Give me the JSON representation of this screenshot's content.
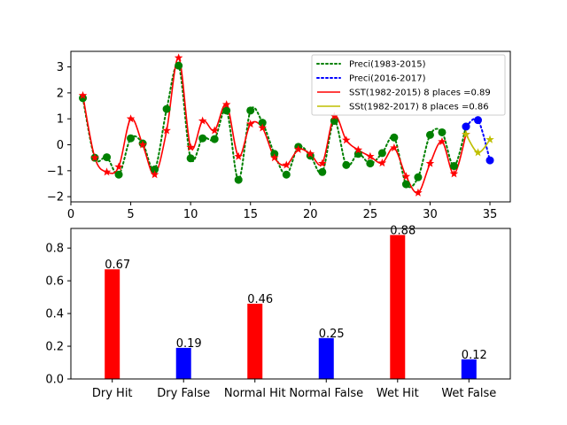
{
  "chart_data": [
    {
      "type": "line",
      "xlim": [
        0,
        36.7
      ],
      "ylim": [
        -2.2,
        3.6
      ],
      "xticks": [
        0,
        5,
        10,
        15,
        20,
        25,
        30,
        35
      ],
      "yticks": [
        -2,
        -1,
        0,
        1,
        2,
        3
      ],
      "legend_position": "top-right",
      "series": [
        {
          "name": " Preci(1983-2015)",
          "style": "dotted",
          "marker": "circle",
          "color": "#008000",
          "x": [
            1,
            2,
            3,
            4,
            5,
            6,
            7,
            8,
            9,
            10,
            11,
            12,
            13,
            14,
            15,
            16,
            17,
            18,
            19,
            20,
            21,
            22,
            23,
            24,
            25,
            26,
            27,
            28,
            29,
            30,
            31,
            32,
            33
          ],
          "y": [
            1.8,
            -0.5,
            -0.48,
            -1.15,
            0.25,
            0.05,
            -0.95,
            1.38,
            3.05,
            -0.52,
            0.25,
            0.22,
            1.32,
            -1.35,
            1.32,
            0.85,
            -0.35,
            -1.15,
            -0.08,
            -0.42,
            -1.05,
            0.92,
            -0.78,
            -0.35,
            -0.72,
            -0.32,
            0.28,
            -1.52,
            -1.25,
            0.38,
            0.48,
            -0.82,
            0.7
          ]
        },
        {
          "name": "Preci(2016-2017)",
          "style": "dotted",
          "marker": "circle",
          "color": "#0000ff",
          "x": [
            33,
            34,
            35
          ],
          "y": [
            0.7,
            0.95,
            -0.6
          ]
        },
        {
          "name": "SST(1982-2015) 8 places =0.89",
          "style": "solid",
          "marker": "star",
          "color": "#ff0000",
          "x": [
            1,
            2,
            3,
            4,
            5,
            6,
            7,
            8,
            9,
            10,
            11,
            12,
            13,
            14,
            15,
            16,
            17,
            18,
            19,
            20,
            21,
            22,
            23,
            24,
            25,
            26,
            27,
            28,
            29,
            30,
            31,
            32,
            33
          ],
          "y": [
            1.9,
            -0.5,
            -1.05,
            -0.85,
            1.0,
            0.0,
            -1.15,
            0.55,
            3.35,
            -0.1,
            0.92,
            0.55,
            1.55,
            -0.45,
            0.8,
            0.65,
            -0.5,
            -0.78,
            -0.18,
            -0.35,
            -0.72,
            1.1,
            0.18,
            -0.2,
            -0.45,
            -0.7,
            -0.12,
            -1.22,
            -1.85,
            -0.72,
            0.12,
            -1.12,
            0.4
          ]
        },
        {
          "name": "SSt(1982-2017) 8 places =0.86",
          "style": "solid",
          "marker": "star",
          "color": "#bfbf00",
          "x": [
            33,
            34,
            35
          ],
          "y": [
            0.4,
            -0.3,
            0.2
          ]
        }
      ]
    },
    {
      "type": "bar",
      "ylim": [
        0,
        0.92
      ],
      "yticks": [
        "0.0",
        "0.2",
        "0.4",
        "0.6",
        "0.8"
      ],
      "categories": [
        "Dry Hit",
        "Dry False",
        "Normal Hit",
        "Normal False",
        "Wet Hit",
        "Wet False"
      ],
      "values": [
        0.67,
        0.19,
        0.46,
        0.25,
        0.88,
        0.12
      ],
      "value_labels": [
        "0.67",
        "0.19",
        "0.46",
        "0.25",
        "0.88",
        "0.12"
      ],
      "colors": [
        "#ff0000",
        "#0000ff",
        "#ff0000",
        "#0000ff",
        "#ff0000",
        "#0000ff"
      ]
    }
  ]
}
